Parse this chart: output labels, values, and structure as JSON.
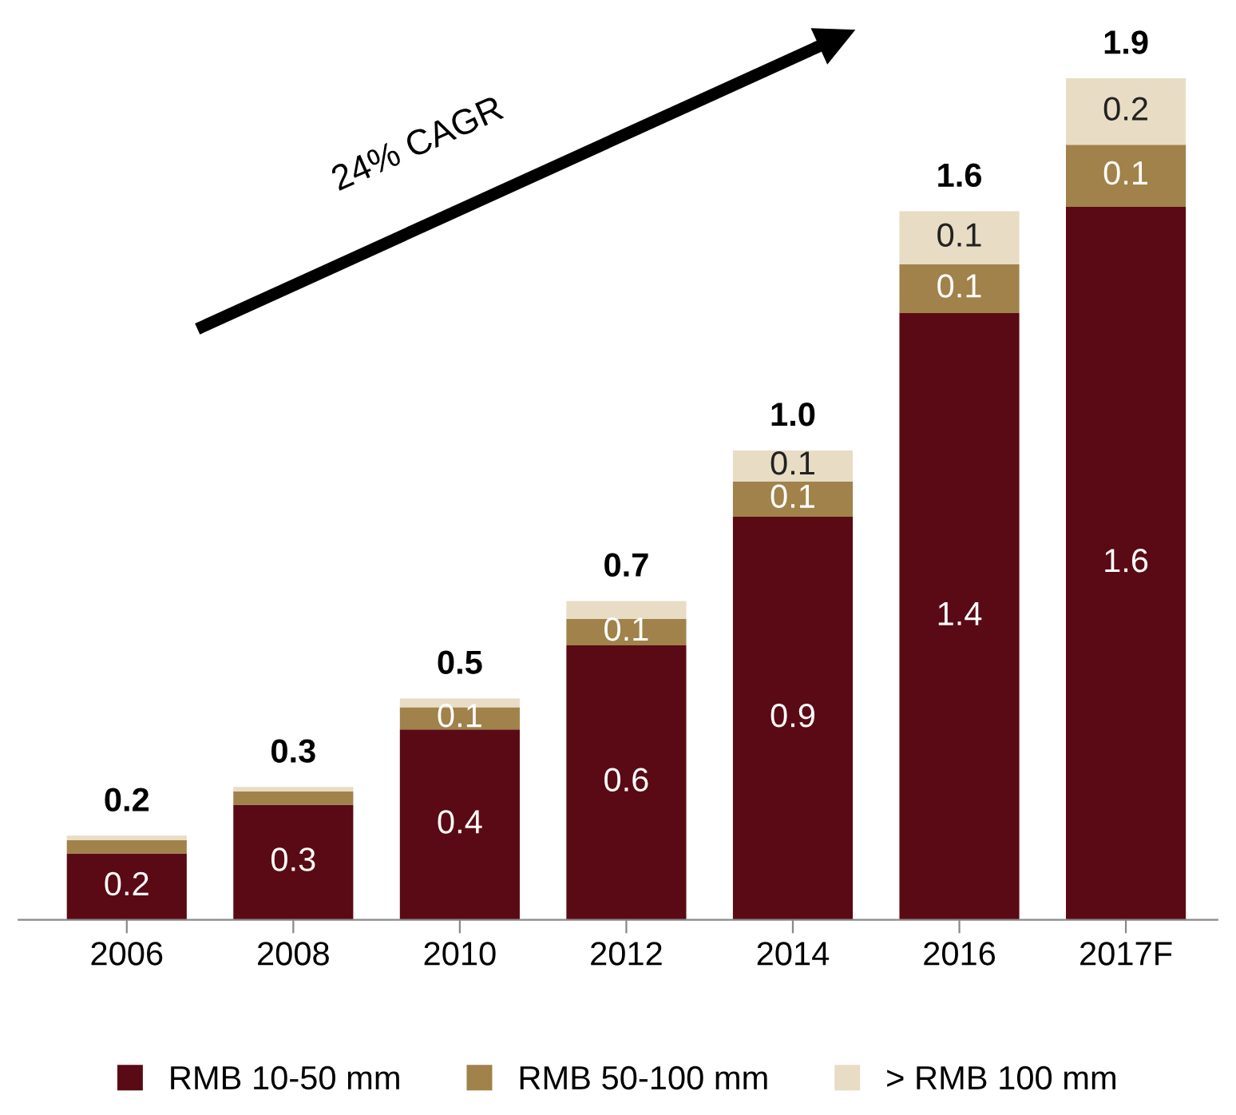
{
  "chart_data": {
    "type": "bar",
    "stacked": true,
    "categories": [
      "2006",
      "2008",
      "2010",
      "2012",
      "2014",
      "2016",
      "2017F"
    ],
    "series": [
      {
        "name": "RMB 10-50 mm",
        "color": "#5a0a14",
        "values": [
          0.15,
          0.26,
          0.43,
          0.62,
          0.91,
          1.37,
          1.61
        ],
        "value_labels": [
          "0.2",
          "0.3",
          "0.4",
          "0.6",
          "0.9",
          "1.4",
          "1.6"
        ]
      },
      {
        "name": "RMB 50-100 mm",
        "color": "#a0824a",
        "values": [
          0.03,
          0.03,
          0.05,
          0.06,
          0.08,
          0.11,
          0.14
        ],
        "value_labels": [
          null,
          null,
          "0.1",
          "0.1",
          "0.1",
          "0.1",
          "0.1"
        ]
      },
      {
        "name": "> RMB 100 mm",
        "color": "#e8dcc4",
        "values": [
          0.01,
          0.01,
          0.02,
          0.04,
          0.07,
          0.12,
          0.15
        ],
        "value_labels": [
          null,
          null,
          null,
          null,
          "0.1",
          "0.1",
          "0.2"
        ]
      }
    ],
    "totals": [
      "0.2",
      "0.3",
      "0.5",
      "0.7",
      "1.0",
      "1.6",
      "1.9"
    ],
    "annotations": [
      "24% CAGR"
    ],
    "legend": "bottom",
    "grid": false
  }
}
